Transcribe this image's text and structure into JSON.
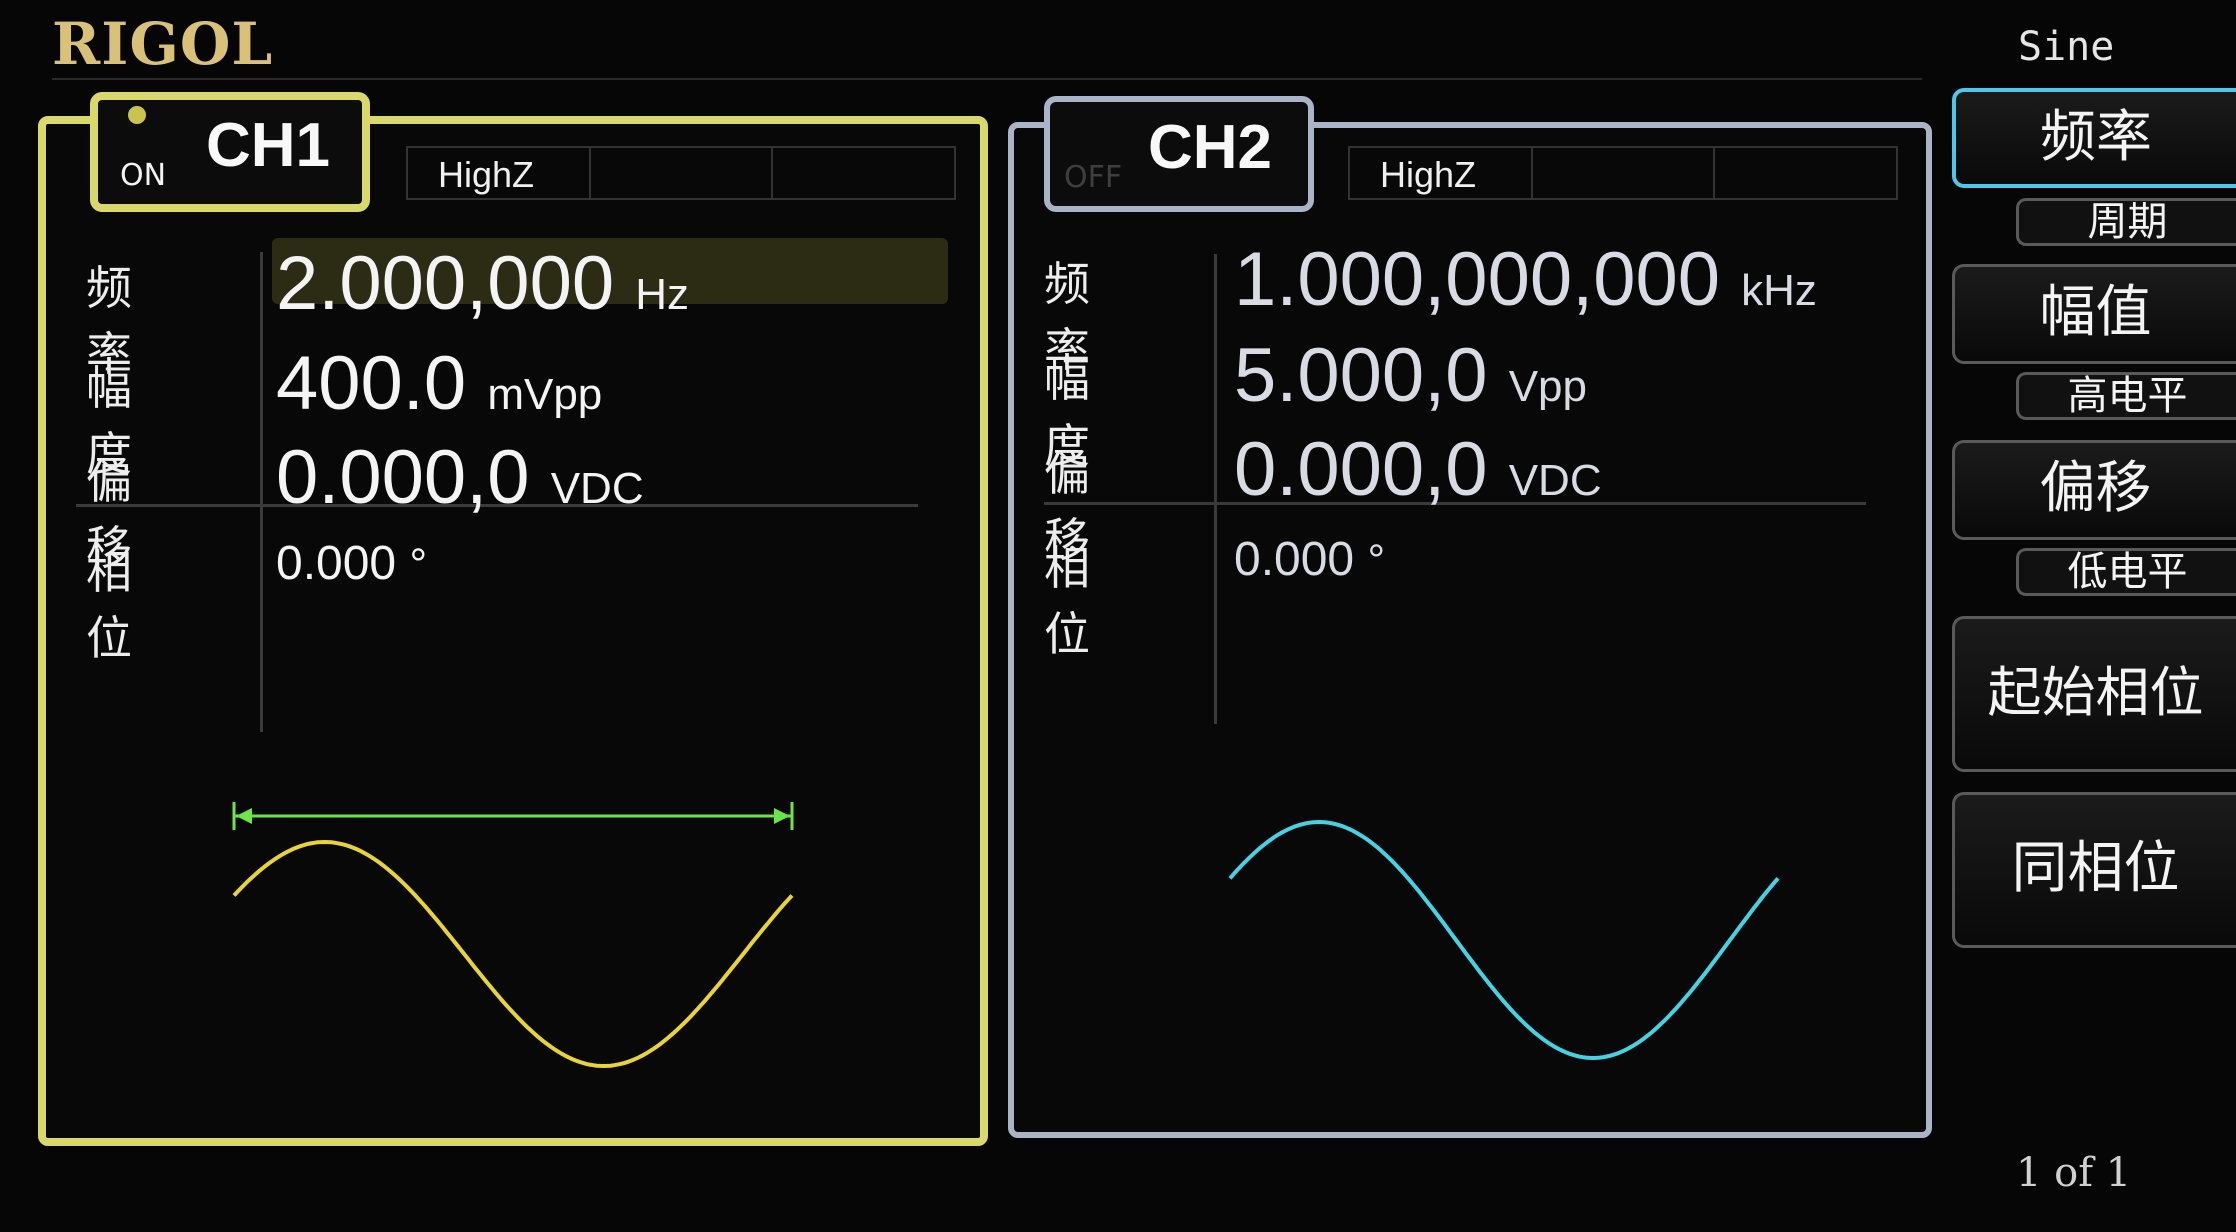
{
  "header": {
    "brand": "RIGOL",
    "mode": "Sine",
    "page": "1 of 1"
  },
  "ch1": {
    "state": "ON",
    "label": "CH1",
    "load": "HighZ",
    "params": [
      {
        "label": "频率",
        "value": "2.000,000",
        "unit": "Hz"
      },
      {
        "label": "幅度",
        "value": "400.0",
        "unit": "mVpp"
      },
      {
        "label": "偏移",
        "value": "0.000,0",
        "unit": "VDC"
      },
      {
        "label": "相位",
        "value": "0.000",
        "unit": "°"
      }
    ],
    "wave_color": "#e8d437",
    "marker_color": "#6be64a"
  },
  "ch2": {
    "state": "OFF",
    "label": "CH2",
    "load": "HighZ",
    "params": [
      {
        "label": "频率",
        "value": "1.000,000,000",
        "unit": "kHz"
      },
      {
        "label": "幅度",
        "value": "5.000,0",
        "unit": "Vpp"
      },
      {
        "label": "偏移",
        "value": "0.000,0",
        "unit": "VDC"
      },
      {
        "label": "相位",
        "value": "0.000",
        "unit": "°"
      }
    ],
    "wave_color": "#45d3e4"
  },
  "softkeys": [
    {
      "label": "频率",
      "sub": "周期",
      "active": true
    },
    {
      "label": "幅值",
      "sub": "高电平"
    },
    {
      "label": "偏移",
      "sub": "低电平"
    },
    {
      "label": "起始相位"
    },
    {
      "label": "同相位"
    }
  ],
  "colors": {
    "ch1_frame": "#d9d86a",
    "ch2_frame": "#a9b4c6",
    "active_key": "#4fc7ea",
    "brand": "#d9c17a"
  }
}
